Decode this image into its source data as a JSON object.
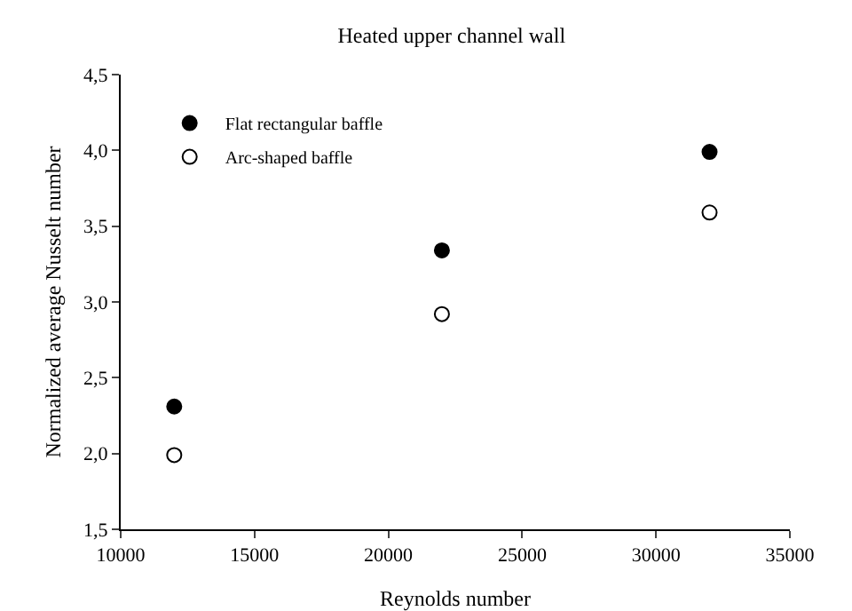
{
  "chart_data": {
    "type": "scatter",
    "title": "Heated upper channel wall",
    "xlabel": "Reynolds number",
    "ylabel": "Normalized average Nusselt number",
    "x": [
      12000,
      22000,
      32000
    ],
    "series": [
      {
        "name": "Flat rectangular baffle",
        "color": "#000000",
        "values": [
          2.31,
          3.34,
          3.99
        ]
      },
      {
        "name": "Arc-shaped baffle",
        "color": "#ffffff",
        "values": [
          1.99,
          2.92,
          3.59
        ]
      }
    ],
    "xlim": [
      10000,
      35000
    ],
    "xticks": [
      10000,
      15000,
      20000,
      25000,
      30000,
      35000
    ],
    "ylim": [
      1.5,
      4.5
    ],
    "yticks": [
      {
        "value": 1.5,
        "label": "1,5"
      },
      {
        "value": 2,
        "label": "2,0"
      },
      {
        "value": 2.5,
        "label": "2,5"
      },
      {
        "value": 3,
        "label": "3,0"
      },
      {
        "value": 3.5,
        "label": "3,5"
      },
      {
        "value": 4,
        "label": "4,0"
      },
      {
        "value": 4.5,
        "label": "4,5"
      }
    ],
    "marker": "circle",
    "grid": false,
    "legend": "top left"
  }
}
